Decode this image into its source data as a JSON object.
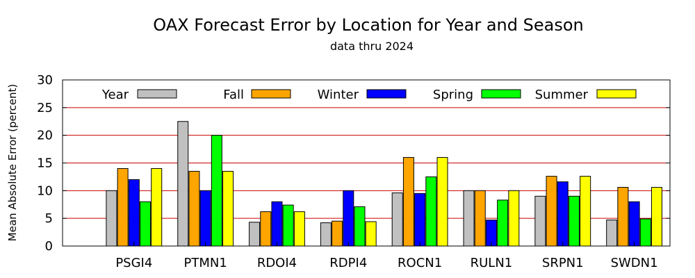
{
  "chart_data": {
    "type": "bar",
    "title": "OAX Forecast Error by Location for Year and Season",
    "subtitle": "data thru 2024",
    "ylabel": "Mean Absolute Error (percent)",
    "xlabel": "",
    "ylim": [
      0,
      30
    ],
    "yticks": [
      0,
      5,
      10,
      15,
      20,
      25,
      30
    ],
    "grid": true,
    "grid_color": "#cc0000",
    "legend_position": "top",
    "categories": [
      "PSGI4",
      "PTMN1",
      "RDOI4",
      "RDPI4",
      "ROCN1",
      "RULN1",
      "SRPN1",
      "SWDN1"
    ],
    "series": [
      {
        "name": "Year",
        "color": "#c0c0c0",
        "values": [
          10.0,
          22.5,
          4.3,
          4.2,
          9.6,
          10.0,
          9.0,
          4.7
        ]
      },
      {
        "name": "Fall",
        "color": "#ffa500",
        "values": [
          14.0,
          13.5,
          6.2,
          4.5,
          16.0,
          10.0,
          12.6,
          10.6
        ]
      },
      {
        "name": "Winter",
        "color": "#0000ff",
        "values": [
          12.0,
          10.0,
          8.0,
          10.0,
          9.5,
          4.7,
          11.6,
          8.0
        ]
      },
      {
        "name": "Spring",
        "color": "#00ff00",
        "values": [
          8.0,
          20.0,
          7.4,
          7.1,
          12.5,
          8.3,
          9.0,
          4.9
        ]
      },
      {
        "name": "Summer",
        "color": "#ffff00",
        "values": [
          14.0,
          13.5,
          6.2,
          4.4,
          16.0,
          10.0,
          12.6,
          10.6
        ]
      }
    ]
  }
}
